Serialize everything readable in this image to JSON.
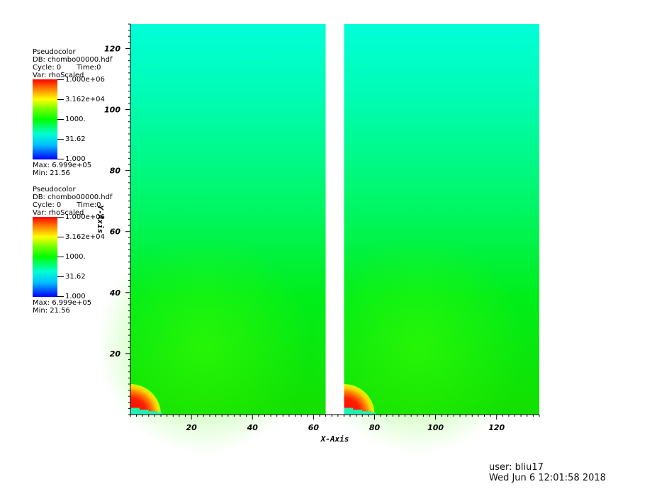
{
  "legends": [
    {
      "plot_type": "Pseudocolor",
      "db": "DB: chombo00000.hdf",
      "cycle": "Cycle: 0",
      "time": "Time:0",
      "var": "Var: rhoScaled",
      "ticks": [
        "1.000e+06",
        "3.162e+04",
        "1000.",
        "31.62",
        "1.000"
      ],
      "max": "Max:  6.999e+05",
      "min": "Min:  21.56"
    },
    {
      "plot_type": "Pseudocolor",
      "db": "DB: chombo00000.hdf",
      "cycle": "Cycle: 0",
      "time": "Time:0",
      "var": "Var: rhoScaled",
      "ticks": [
        "1.000e+06",
        "3.162e+04",
        "1000.",
        "31.62",
        "1.000"
      ],
      "max": "Max:  6.999e+05",
      "min": "Min:  21.56"
    }
  ],
  "chart_data": {
    "type": "heatmap",
    "xlabel": "X-Axis",
    "ylabel": "Y-Axis",
    "xlim": [
      0,
      134
    ],
    "ylim": [
      0,
      128
    ],
    "x_ticks": [
      20,
      40,
      60,
      80,
      100,
      120
    ],
    "y_ticks": [
      20,
      40,
      60,
      80,
      100,
      120
    ],
    "colormap": [
      "#0000ff",
      "#00bfff",
      "#00ffd0",
      "#00ff00",
      "#7fff00",
      "#ffff00",
      "#ff8000",
      "#ff0000"
    ],
    "color_scale": "log",
    "color_range": [
      1,
      1000000
    ],
    "domains": [
      {
        "x_range": [
          0,
          64
        ],
        "y_range": [
          0,
          128
        ]
      },
      {
        "x_range": [
          70,
          134
        ],
        "y_range": [
          0,
          128
        ]
      }
    ],
    "gap_x_range": [
      64,
      70
    ]
  },
  "footer": {
    "user": "user: bliu17",
    "date": "Wed Jun  6 12:01:58 2018"
  }
}
